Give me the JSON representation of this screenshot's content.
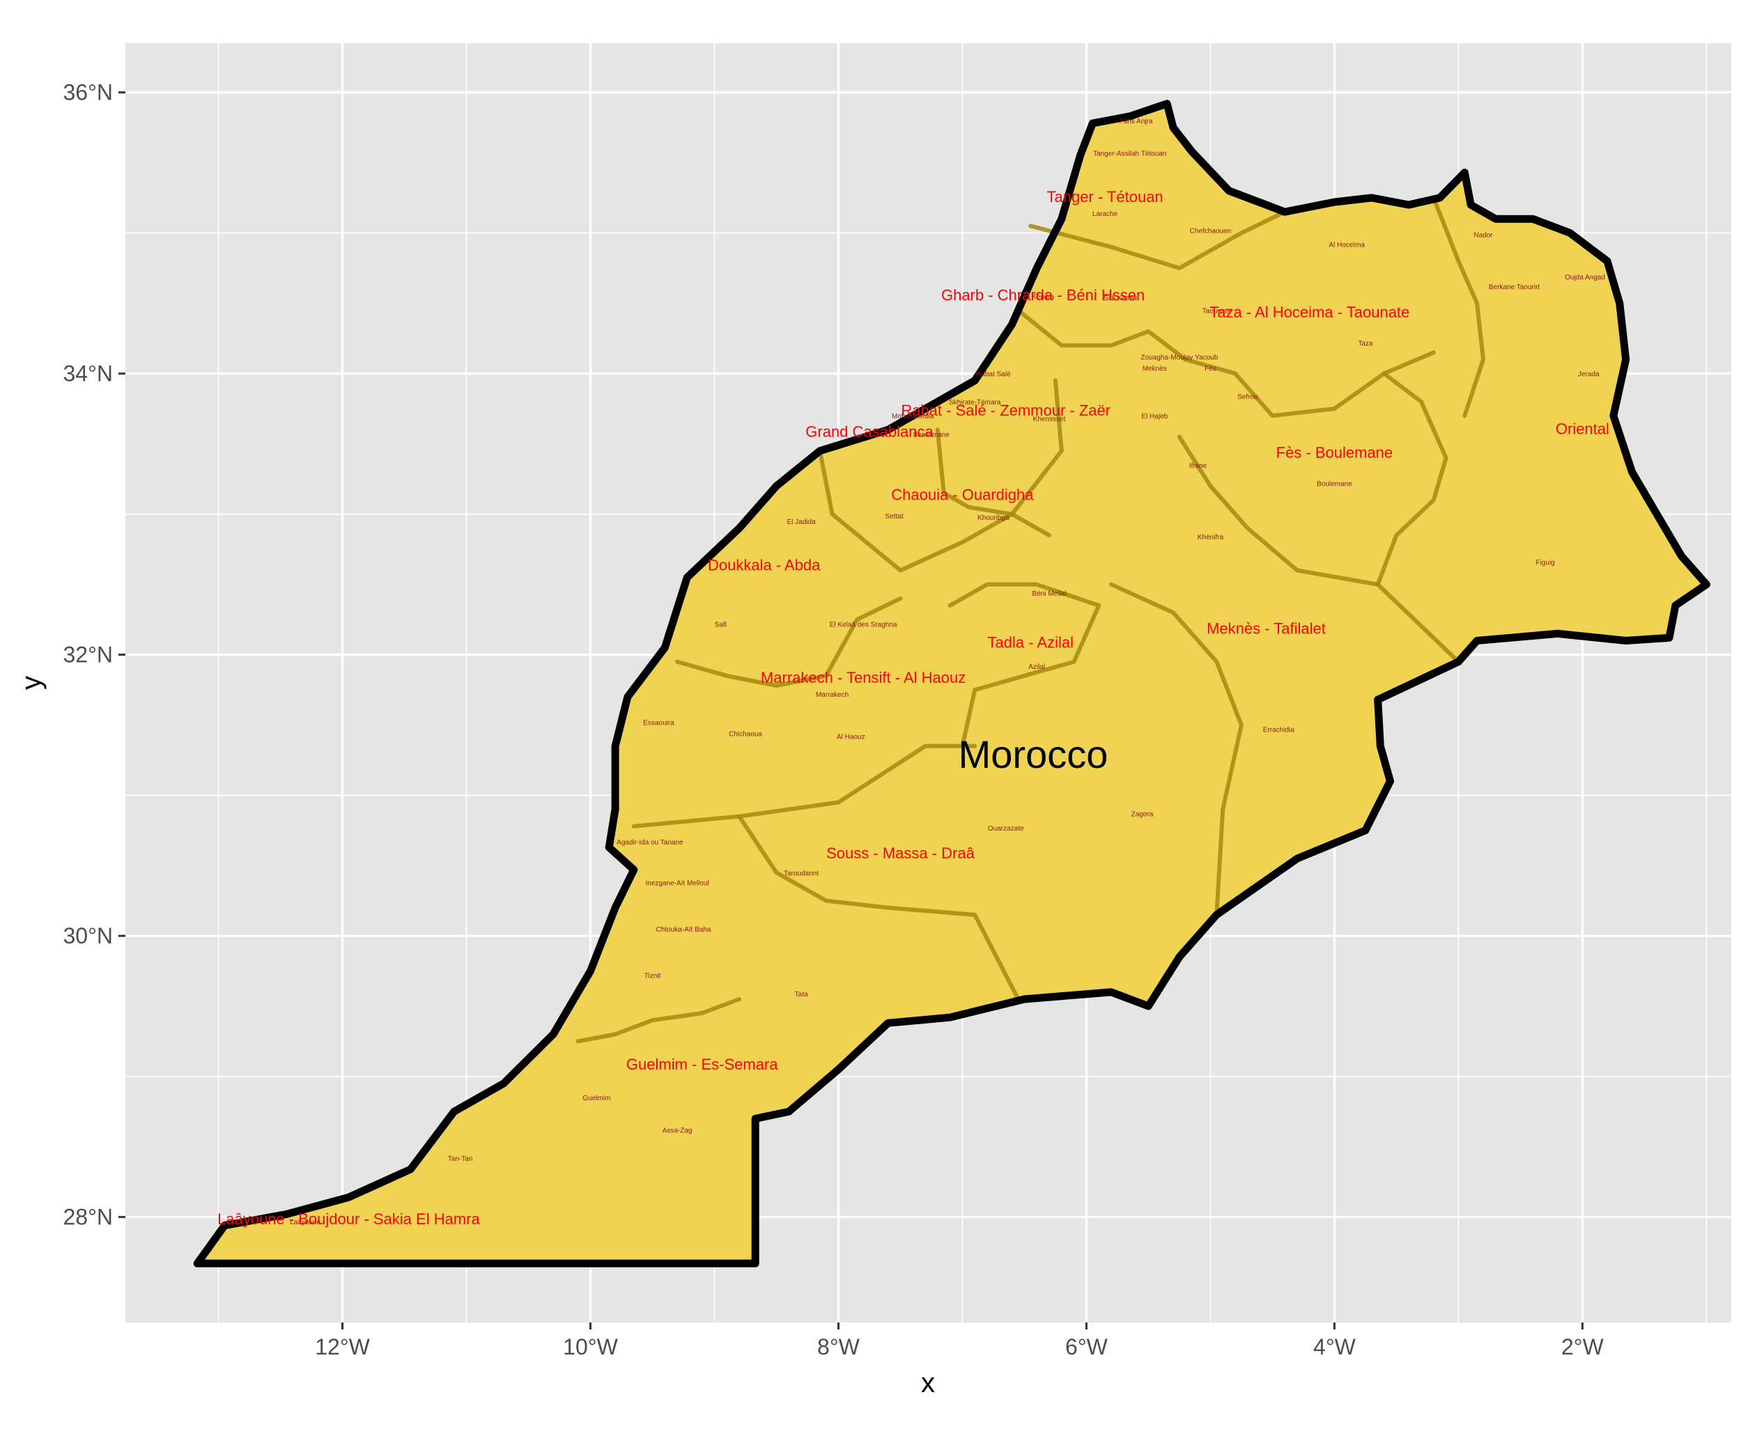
{
  "map": {
    "country_label": "Morocco",
    "x_axis_title": "x",
    "y_axis_title": "y",
    "x_ticks": [
      {
        "lon": -12,
        "label": "12°W"
      },
      {
        "lon": -10,
        "label": "10°W"
      },
      {
        "lon": -8,
        "label": "8°W"
      },
      {
        "lon": -6,
        "label": "6°W"
      },
      {
        "lon": -4,
        "label": "4°W"
      },
      {
        "lon": -2,
        "label": "2°W"
      }
    ],
    "y_ticks": [
      {
        "lat": 36,
        "label": "36°N"
      },
      {
        "lat": 34,
        "label": "34°N"
      },
      {
        "lat": 32,
        "label": "32°N"
      },
      {
        "lat": 30,
        "label": "30°N"
      },
      {
        "lat": 28,
        "label": "28°N"
      }
    ],
    "xlim": [
      -13.75,
      -0.8
    ],
    "ylim": [
      27.25,
      36.35
    ],
    "colors": {
      "panel": "#e5e5e5",
      "grid": "#ffffff",
      "fill": "#f0d352",
      "region_border": "#a68a0f",
      "outline": "#000000",
      "region_label": "#ff0000",
      "province_label": "#8b1a1a"
    },
    "outline": [
      [
        -13.17,
        27.67
      ],
      [
        -12.95,
        27.94
      ],
      [
        -12.45,
        28.02
      ],
      [
        -11.95,
        28.14
      ],
      [
        -11.45,
        28.34
      ],
      [
        -11.1,
        28.75
      ],
      [
        -10.7,
        28.95
      ],
      [
        -10.3,
        29.3
      ],
      [
        -10.0,
        29.75
      ],
      [
        -9.8,
        30.2
      ],
      [
        -9.65,
        30.47
      ],
      [
        -9.85,
        30.63
      ],
      [
        -9.8,
        30.9
      ],
      [
        -9.8,
        31.35
      ],
      [
        -9.7,
        31.7
      ],
      [
        -9.4,
        32.05
      ],
      [
        -9.22,
        32.55
      ],
      [
        -8.8,
        32.9
      ],
      [
        -8.5,
        33.2
      ],
      [
        -8.15,
        33.45
      ],
      [
        -7.6,
        33.6
      ],
      [
        -7.3,
        33.75
      ],
      [
        -6.9,
        33.95
      ],
      [
        -6.6,
        34.35
      ],
      [
        -6.4,
        34.75
      ],
      [
        -6.2,
        35.1
      ],
      [
        -6.05,
        35.55
      ],
      [
        -5.95,
        35.78
      ],
      [
        -5.65,
        35.83
      ],
      [
        -5.35,
        35.92
      ],
      [
        -5.3,
        35.75
      ],
      [
        -5.15,
        35.58
      ],
      [
        -4.85,
        35.3
      ],
      [
        -4.4,
        35.15
      ],
      [
        -4.0,
        35.22
      ],
      [
        -3.7,
        35.25
      ],
      [
        -3.4,
        35.2
      ],
      [
        -3.15,
        35.25
      ],
      [
        -2.95,
        35.43
      ],
      [
        -2.9,
        35.2
      ],
      [
        -2.7,
        35.1
      ],
      [
        -2.4,
        35.1
      ],
      [
        -2.1,
        35.0
      ],
      [
        -1.8,
        34.8
      ],
      [
        -1.7,
        34.5
      ],
      [
        -1.65,
        34.1
      ],
      [
        -1.75,
        33.7
      ],
      [
        -1.6,
        33.3
      ],
      [
        -1.4,
        33.0
      ],
      [
        -1.2,
        32.7
      ],
      [
        -1.0,
        32.5
      ],
      [
        -1.25,
        32.35
      ],
      [
        -1.3,
        32.12
      ],
      [
        -1.65,
        32.1
      ],
      [
        -2.2,
        32.15
      ],
      [
        -2.85,
        32.1
      ],
      [
        -3.0,
        31.95
      ],
      [
        -3.65,
        31.68
      ],
      [
        -3.63,
        31.35
      ],
      [
        -3.55,
        31.1
      ],
      [
        -3.75,
        30.75
      ],
      [
        -4.3,
        30.55
      ],
      [
        -4.95,
        30.15
      ],
      [
        -5.25,
        29.85
      ],
      [
        -5.5,
        29.5
      ],
      [
        -5.8,
        29.6
      ],
      [
        -6.5,
        29.55
      ],
      [
        -7.1,
        29.42
      ],
      [
        -7.6,
        29.38
      ],
      [
        -8.0,
        29.05
      ],
      [
        -8.4,
        28.75
      ],
      [
        -8.67,
        28.7
      ],
      [
        -8.67,
        27.67
      ]
    ],
    "region_borders": [
      [
        [
          -9.3,
          31.95
        ],
        [
          -8.9,
          31.85
        ],
        [
          -8.5,
          31.78
        ],
        [
          -8.1,
          31.85
        ],
        [
          -7.85,
          32.25
        ],
        [
          -7.5,
          32.4
        ]
      ],
      [
        [
          -8.15,
          33.45
        ],
        [
          -8.05,
          33.0
        ],
        [
          -7.5,
          32.6
        ],
        [
          -7.0,
          32.8
        ],
        [
          -6.6,
          33.0
        ],
        [
          -6.3,
          32.85
        ]
      ],
      [
        [
          -7.1,
          32.35
        ],
        [
          -6.8,
          32.5
        ],
        [
          -6.4,
          32.5
        ],
        [
          -5.9,
          32.35
        ],
        [
          -6.1,
          31.95
        ],
        [
          -6.9,
          31.75
        ],
        [
          -7.0,
          31.35
        ]
      ],
      [
        [
          -9.65,
          30.78
        ],
        [
          -8.8,
          30.85
        ],
        [
          -8.0,
          30.95
        ],
        [
          -7.3,
          31.35
        ],
        [
          -6.9,
          31.35
        ]
      ],
      [
        [
          -5.8,
          32.5
        ],
        [
          -5.3,
          32.3
        ],
        [
          -4.95,
          31.95
        ],
        [
          -4.75,
          31.5
        ],
        [
          -4.9,
          30.9
        ],
        [
          -4.95,
          30.15
        ]
      ],
      [
        [
          -6.45,
          35.05
        ],
        [
          -5.8,
          34.9
        ],
        [
          -5.25,
          34.75
        ],
        [
          -4.75,
          35.0
        ],
        [
          -4.4,
          35.15
        ]
      ],
      [
        [
          -6.55,
          34.45
        ],
        [
          -6.2,
          34.2
        ],
        [
          -5.8,
          34.2
        ],
        [
          -5.5,
          34.3
        ],
        [
          -5.2,
          34.1
        ]
      ],
      [
        [
          -7.2,
          33.6
        ],
        [
          -7.15,
          33.15
        ],
        [
          -6.95,
          33.05
        ],
        [
          -6.6,
          33.0
        ],
        [
          -6.2,
          33.45
        ],
        [
          -6.25,
          33.95
        ]
      ],
      [
        [
          -5.2,
          34.1
        ],
        [
          -4.8,
          34.0
        ],
        [
          -4.5,
          33.7
        ],
        [
          -4.0,
          33.75
        ],
        [
          -3.6,
          34.0
        ],
        [
          -3.2,
          34.15
        ]
      ],
      [
        [
          -3.6,
          34.0
        ],
        [
          -3.3,
          33.8
        ],
        [
          -3.1,
          33.4
        ],
        [
          -3.2,
          33.1
        ],
        [
          -3.5,
          32.85
        ],
        [
          -3.65,
          32.5
        ],
        [
          -3.0,
          31.95
        ]
      ],
      [
        [
          -5.25,
          33.55
        ],
        [
          -5.0,
          33.2
        ],
        [
          -4.7,
          32.9
        ],
        [
          -4.3,
          32.6
        ],
        [
          -3.65,
          32.5
        ]
      ],
      [
        [
          -10.1,
          29.25
        ],
        [
          -9.8,
          29.3
        ],
        [
          -9.5,
          29.4
        ],
        [
          -9.1,
          29.45
        ],
        [
          -8.8,
          29.55
        ]
      ],
      [
        [
          -8.8,
          30.85
        ],
        [
          -8.5,
          30.45
        ],
        [
          -8.1,
          30.25
        ],
        [
          -7.6,
          30.2
        ],
        [
          -6.9,
          30.15
        ],
        [
          -6.55,
          29.55
        ]
      ],
      [
        [
          -3.2,
          35.25
        ],
        [
          -3.0,
          34.8
        ],
        [
          -2.85,
          34.5
        ],
        [
          -2.8,
          34.1
        ],
        [
          -2.95,
          33.7
        ]
      ]
    ],
    "regions": [
      {
        "name": "Tanger - Tétouan",
        "lon": -5.85,
        "lat": 35.22
      },
      {
        "name": "Gharb - Chrarda - Béni Hssen",
        "lon": -6.35,
        "lat": 34.52
      },
      {
        "name": "Taza - Al Hoceima - Taounate",
        "lon": -4.2,
        "lat": 34.4
      },
      {
        "name": "Rabat - Salé - Zemmour - Zaër",
        "lon": -6.65,
        "lat": 33.7
      },
      {
        "name": "Grand Casablanca",
        "lon": -7.75,
        "lat": 33.55
      },
      {
        "name": "Fès - Boulemane",
        "lon": -4.0,
        "lat": 33.4
      },
      {
        "name": "Oriental",
        "lon": -2.0,
        "lat": 33.57
      },
      {
        "name": "Chaouia - Ouardigha",
        "lon": -7.0,
        "lat": 33.1
      },
      {
        "name": "Doukkala - Abda",
        "lon": -8.6,
        "lat": 32.6
      },
      {
        "name": "Tadla - Azilal",
        "lon": -6.45,
        "lat": 32.05
      },
      {
        "name": "Meknès - Tafilalet",
        "lon": -4.55,
        "lat": 32.15
      },
      {
        "name": "Marrakech - Tensift - Al Haouz",
        "lon": -7.8,
        "lat": 31.8
      },
      {
        "name": "Souss - Massa - Draâ",
        "lon": -7.5,
        "lat": 30.55
      },
      {
        "name": "Guelmim - Es-Semara",
        "lon": -9.1,
        "lat": 29.05
      },
      {
        "name": "Laâyoune - Boujdour - Sakia El Hamra",
        "lon": -11.95,
        "lat": 27.95
      }
    ],
    "provinces": [
      {
        "name": "Fahs Anjra",
        "lon": -5.6,
        "lat": 35.78
      },
      {
        "name": "Tanger-Assilah Tétouan",
        "lon": -5.65,
        "lat": 35.55
      },
      {
        "name": "Larache",
        "lon": -5.85,
        "lat": 35.12
      },
      {
        "name": "Chefchaouen",
        "lon": -5.0,
        "lat": 35.0
      },
      {
        "name": "Al Hoceïma",
        "lon": -3.9,
        "lat": 34.9
      },
      {
        "name": "Nador",
        "lon": -2.8,
        "lat": 34.97
      },
      {
        "name": "Oujda Angad",
        "lon": -1.98,
        "lat": 34.67
      },
      {
        "name": "Berkane Taourirt",
        "lon": -2.55,
        "lat": 34.6
      },
      {
        "name": "Kénitra",
        "lon": -6.35,
        "lat": 34.53
      },
      {
        "name": "Sidi Kacem",
        "lon": -5.72,
        "lat": 34.52
      },
      {
        "name": "Taounate",
        "lon": -4.95,
        "lat": 34.43
      },
      {
        "name": "Zouagha-Moulay Yacoub",
        "lon": -5.25,
        "lat": 34.1
      },
      {
        "name": "Taza",
        "lon": -3.75,
        "lat": 34.2
      },
      {
        "name": "Meknès",
        "lon": -5.45,
        "lat": 34.02
      },
      {
        "name": "Fès",
        "lon": -5.0,
        "lat": 34.02
      },
      {
        "name": "Rabat Salé",
        "lon": -6.75,
        "lat": 33.98
      },
      {
        "name": "Jerada",
        "lon": -1.95,
        "lat": 33.98
      },
      {
        "name": "Sefrou",
        "lon": -4.7,
        "lat": 33.82
      },
      {
        "name": "Skhirate-Témara",
        "lon": -6.9,
        "lat": 33.78
      },
      {
        "name": "Mohammedia",
        "lon": -7.4,
        "lat": 33.68
      },
      {
        "name": "El Hajeb",
        "lon": -5.45,
        "lat": 33.68
      },
      {
        "name": "Khemisset",
        "lon": -6.3,
        "lat": 33.66
      },
      {
        "name": "Benslimane",
        "lon": -7.25,
        "lat": 33.55
      },
      {
        "name": "Ifrane",
        "lon": -5.1,
        "lat": 33.33
      },
      {
        "name": "Boulemane",
        "lon": -4.0,
        "lat": 33.2
      },
      {
        "name": "El Jadida",
        "lon": -8.3,
        "lat": 32.93
      },
      {
        "name": "Settat",
        "lon": -7.55,
        "lat": 32.97
      },
      {
        "name": "Khouribga",
        "lon": -6.75,
        "lat": 32.96
      },
      {
        "name": "Khénifra",
        "lon": -5.0,
        "lat": 32.82
      },
      {
        "name": "Figuig",
        "lon": -2.3,
        "lat": 32.64
      },
      {
        "name": "Béni Mellal",
        "lon": -6.3,
        "lat": 32.42
      },
      {
        "name": "Safi",
        "lon": -8.95,
        "lat": 32.2
      },
      {
        "name": "El Kelaâ des Sraghna",
        "lon": -7.8,
        "lat": 32.2
      },
      {
        "name": "Azilal",
        "lon": -6.4,
        "lat": 31.9
      },
      {
        "name": "Marrakech",
        "lon": -8.05,
        "lat": 31.7
      },
      {
        "name": "Essaouira",
        "lon": -9.45,
        "lat": 31.5
      },
      {
        "name": "Chichaoua",
        "lon": -8.75,
        "lat": 31.42
      },
      {
        "name": "Al Haouz",
        "lon": -7.9,
        "lat": 31.4
      },
      {
        "name": "Errachidia",
        "lon": -4.45,
        "lat": 31.45
      },
      {
        "name": "Zagora",
        "lon": -5.55,
        "lat": 30.85
      },
      {
        "name": "Ouarzazate",
        "lon": -6.65,
        "lat": 30.75
      },
      {
        "name": "Agadir-Ida ou Tanane",
        "lon": -9.52,
        "lat": 30.65
      },
      {
        "name": "Taroudannt",
        "lon": -8.3,
        "lat": 30.43
      },
      {
        "name": "Inezgane-Aït Melloul",
        "lon": -9.3,
        "lat": 30.36
      },
      {
        "name": "Chtouka-Aït Baha",
        "lon": -9.25,
        "lat": 30.03
      },
      {
        "name": "Tiznit",
        "lon": -9.5,
        "lat": 29.7
      },
      {
        "name": "Tata",
        "lon": -8.3,
        "lat": 29.57
      },
      {
        "name": "Guelmim",
        "lon": -9.95,
        "lat": 28.83
      },
      {
        "name": "Assa-Zag",
        "lon": -9.3,
        "lat": 28.6
      },
      {
        "name": "Tan-Tan",
        "lon": -11.05,
        "lat": 28.4
      },
      {
        "name": "Laâyoune",
        "lon": -12.3,
        "lat": 27.95
      }
    ]
  }
}
